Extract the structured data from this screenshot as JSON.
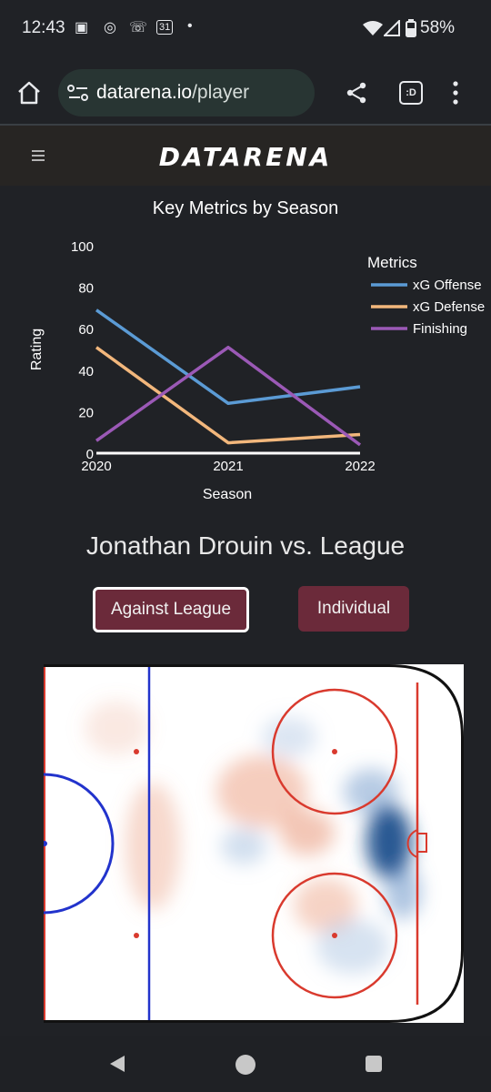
{
  "status_bar": {
    "time": "12:43",
    "battery": "58%",
    "icons": [
      "teams-icon",
      "instagram-icon",
      "missed-call-icon",
      "calendar-icon",
      "dot-icon",
      "wifi-icon",
      "signal-icon",
      "battery-icon"
    ],
    "calendar_day": "31"
  },
  "browser": {
    "url_host": "datarena.io",
    "url_path": "/player",
    "tab_label": ":D"
  },
  "site": {
    "logo": "DATARENA"
  },
  "chart_data": {
    "type": "line",
    "title": "Key Metrics by Season",
    "xlabel": "Season",
    "ylabel": "Rating",
    "categories": [
      "2020",
      "2021",
      "2022"
    ],
    "yticks": [
      "0",
      "20",
      "40",
      "60",
      "80",
      "100"
    ],
    "ylim": [
      0,
      100
    ],
    "legend_title": "Metrics",
    "legend_position": "right",
    "series": [
      {
        "name": "xG Offense",
        "color": "#5b9bd5",
        "values": [
          69,
          24,
          32
        ]
      },
      {
        "name": "xG Defense",
        "color": "#f2b77c",
        "values": [
          51,
          5,
          9
        ]
      },
      {
        "name": "Finishing",
        "color": "#9b59b6",
        "values": [
          6,
          51,
          4
        ]
      }
    ]
  },
  "player": {
    "heading": "Jonathan Drouin vs. League",
    "buttons": {
      "against": "Against League",
      "individual": "Individual"
    }
  },
  "rink": {
    "line_red": "#d93a2e",
    "line_blue": "#2233cc",
    "heat_hot": "#e8906e",
    "heat_cold": "#1f4f8c"
  }
}
